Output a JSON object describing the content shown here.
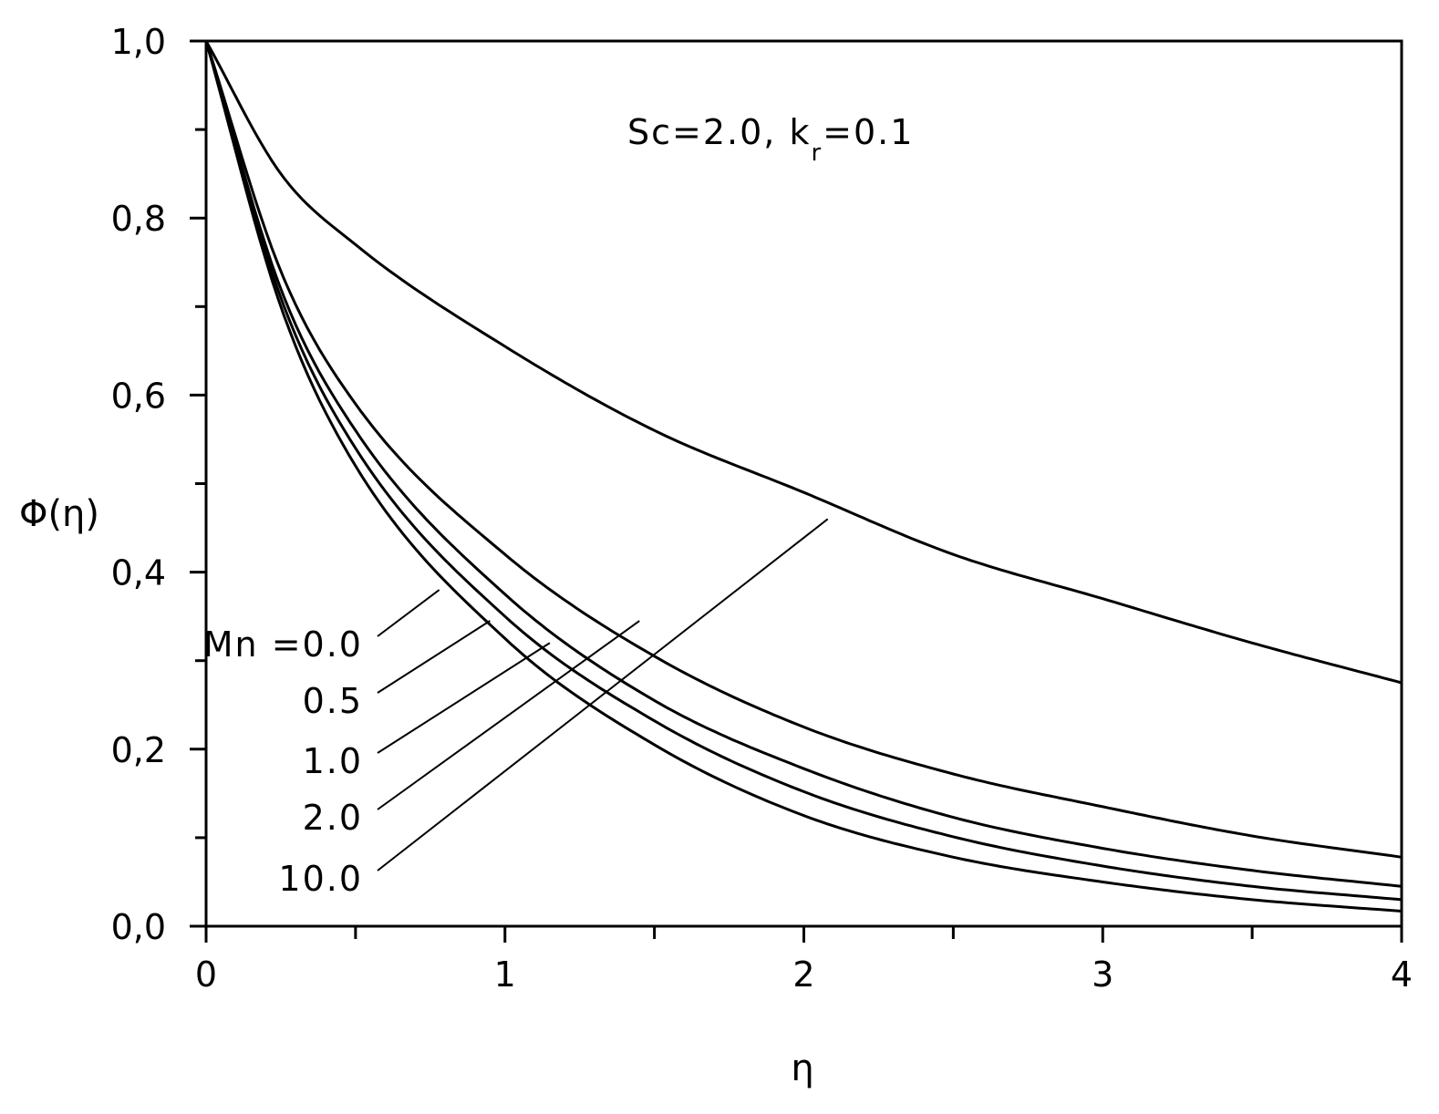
{
  "chart_data": {
    "type": "line",
    "title": "",
    "xlabel": "η",
    "ylabel": "Φ(η)",
    "xlim": [
      0,
      4
    ],
    "ylim": [
      0,
      1.0
    ],
    "x_ticks": [
      "0",
      "1",
      "2",
      "3",
      "4"
    ],
    "y_ticks": [
      "0,0",
      "0,2",
      "0,4",
      "0,6",
      "0,8",
      "1,0"
    ],
    "grid": false,
    "annotation": {
      "text": "Sc=2.0, k",
      "subscript": "r",
      "suffix": "=0.1"
    },
    "series_label_prefix": "Mn",
    "series": [
      {
        "label": "Mn =0.0",
        "x": [
          0,
          0.25,
          0.5,
          1.0,
          1.5,
          2.0,
          2.5,
          3.0,
          3.5,
          4.0
        ],
        "y": [
          1.0,
          0.85,
          0.77,
          0.655,
          0.56,
          0.49,
          0.42,
          0.37,
          0.32,
          0.275
        ]
      },
      {
        "label": "0.5",
        "x": [
          0,
          0.25,
          0.5,
          1.0,
          1.5,
          2.0,
          2.5,
          3.0,
          3.5,
          4.0
        ],
        "y": [
          1.0,
          0.74,
          0.59,
          0.42,
          0.305,
          0.225,
          0.172,
          0.135,
          0.102,
          0.078
        ]
      },
      {
        "label": "1.0",
        "x": [
          0,
          0.25,
          0.5,
          1.0,
          1.5,
          2.0,
          2.5,
          3.0,
          3.5,
          4.0
        ],
        "y": [
          1.0,
          0.72,
          0.56,
          0.375,
          0.255,
          0.178,
          0.123,
          0.088,
          0.063,
          0.045
        ]
      },
      {
        "label": "2.0",
        "x": [
          0,
          0.25,
          0.5,
          1.0,
          1.5,
          2.0,
          2.5,
          3.0,
          3.5,
          4.0
        ],
        "y": [
          1.0,
          0.71,
          0.54,
          0.35,
          0.232,
          0.152,
          0.101,
          0.068,
          0.045,
          0.03
        ]
      },
      {
        "label": "10.0",
        "x": [
          0,
          0.25,
          0.5,
          1.0,
          1.5,
          2.0,
          2.5,
          3.0,
          3.5,
          4.0
        ],
        "y": [
          1.0,
          0.7,
          0.52,
          0.325,
          0.205,
          0.125,
          0.078,
          0.05,
          0.03,
          0.017
        ]
      }
    ]
  }
}
